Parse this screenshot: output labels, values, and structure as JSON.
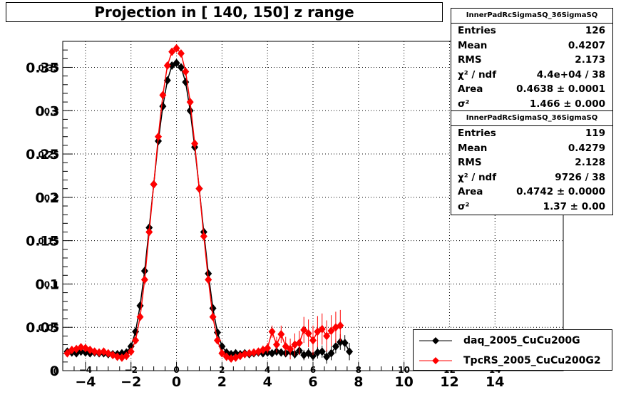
{
  "title": "Projection in [ 140, 150] z range",
  "stats_boxes": [
    {
      "name": "InnerPadRcSigmaSQ_36SigmaSQ",
      "rows": [
        {
          "key": "Entries",
          "value": "126"
        },
        {
          "key": "Mean",
          "value": "0.4207"
        },
        {
          "key": "RMS",
          "value": "2.173"
        },
        {
          "key": "χ² / ndf",
          "value": "4.4e+04 / 38"
        },
        {
          "key": "Area",
          "value": "0.4638 ± 0.0001"
        },
        {
          "key": "σ²",
          "value": "1.466 ± 0.000"
        }
      ]
    },
    {
      "name": "InnerPadRcSigmaSQ_36SigmaSQ",
      "rows": [
        {
          "key": "Entries",
          "value": "119"
        },
        {
          "key": "Mean",
          "value": "0.4279"
        },
        {
          "key": "RMS",
          "value": "2.128"
        },
        {
          "key": "χ² / ndf",
          "value": "9726 / 38"
        },
        {
          "key": "Area",
          "value": "0.4742 ± 0.0000"
        },
        {
          "key": "σ²",
          "value": "1.37 ± 0.00"
        }
      ]
    }
  ],
  "legend": [
    {
      "label": "daq_2005_CuCu200G",
      "color": "#000000"
    },
    {
      "label": "TpcRS_2005_CuCu200G2",
      "color": "#ff0000"
    }
  ],
  "chart_data": {
    "type": "scatter",
    "title": "Projection in [ 140, 150] z range",
    "xlabel": "",
    "ylabel": "",
    "xlim": [
      -5,
      17
    ],
    "ylim": [
      0,
      0.38
    ],
    "grid": true,
    "legend_position": "bottom-right",
    "x_ticks": [
      -4,
      -2,
      0,
      2,
      4,
      6,
      8,
      10,
      12,
      14
    ],
    "x_tick_labels": [
      "−4",
      "−2",
      "0",
      "2",
      "4",
      "6",
      "8",
      "10",
      "12",
      "14"
    ],
    "x_tick_labels_overlay": [
      "−4",
      "−2",
      "0",
      "2",
      "4",
      "6",
      "8",
      "10",
      "12",
      "14"
    ],
    "y_ticks": [
      0,
      0.05,
      0.1,
      0.15,
      0.2,
      0.25,
      0.3,
      0.35
    ],
    "y_tick_labels": [
      "0",
      "0.05",
      "0.1",
      "0.15",
      "0.2",
      "0.25",
      "0.3",
      "0.35"
    ],
    "y_tick_labels_overlay": [
      "0",
      "0.05",
      "0.1",
      "0.15",
      "0.2",
      "0.25",
      "0.3",
      "0.35"
    ],
    "series": [
      {
        "name": "daq_2005_CuCu200G",
        "color": "#000000",
        "marker": "diamond",
        "x": [
          -4.8,
          -4.6,
          -4.4,
          -4.2,
          -4.0,
          -3.8,
          -3.6,
          -3.4,
          -3.2,
          -3.0,
          -2.8,
          -2.6,
          -2.4,
          -2.2,
          -2.0,
          -1.8,
          -1.6,
          -1.4,
          -1.2,
          -1.0,
          -0.8,
          -0.6,
          -0.4,
          -0.2,
          0.0,
          0.2,
          0.4,
          0.6,
          0.8,
          1.0,
          1.2,
          1.4,
          1.6,
          1.8,
          2.0,
          2.2,
          2.4,
          2.6,
          2.8,
          3.0,
          3.2,
          3.4,
          3.6,
          3.8,
          4.0,
          4.2,
          4.4,
          4.6,
          4.8,
          5.0,
          5.2,
          5.4,
          5.6,
          5.8,
          6.0,
          6.2,
          6.4,
          6.6,
          6.8,
          7.0,
          7.2,
          7.4,
          7.6
        ],
        "y": [
          0.022,
          0.021,
          0.02,
          0.022,
          0.021,
          0.02,
          0.021,
          0.02,
          0.02,
          0.019,
          0.019,
          0.019,
          0.02,
          0.021,
          0.028,
          0.045,
          0.075,
          0.115,
          0.165,
          0.215,
          0.265,
          0.305,
          0.335,
          0.352,
          0.355,
          0.35,
          0.333,
          0.3,
          0.258,
          0.21,
          0.16,
          0.112,
          0.072,
          0.044,
          0.028,
          0.021,
          0.019,
          0.02,
          0.019,
          0.02,
          0.019,
          0.02,
          0.021,
          0.02,
          0.021,
          0.02,
          0.022,
          0.021,
          0.02,
          0.022,
          0.019,
          0.023,
          0.018,
          0.02,
          0.017,
          0.021,
          0.022,
          0.016,
          0.02,
          0.028,
          0.033,
          0.032,
          0.022
        ],
        "errors": [
          0.003,
          0.002,
          0.002,
          0.002,
          0.002,
          0.002,
          0.002,
          0.002,
          0.002,
          0.002,
          0.002,
          0.002,
          0.002,
          0.002,
          0.002,
          0.002,
          0.002,
          0.002,
          0.002,
          0.002,
          0.002,
          0.002,
          0.002,
          0.002,
          0.002,
          0.002,
          0.002,
          0.002,
          0.002,
          0.002,
          0.002,
          0.002,
          0.002,
          0.002,
          0.002,
          0.002,
          0.002,
          0.002,
          0.002,
          0.002,
          0.002,
          0.003,
          0.003,
          0.003,
          0.003,
          0.003,
          0.004,
          0.004,
          0.004,
          0.004,
          0.005,
          0.005,
          0.006,
          0.006,
          0.006,
          0.007,
          0.007,
          0.008,
          0.008,
          0.008,
          0.009,
          0.009,
          0.01
        ]
      },
      {
        "name": "TpcRS_2005_CuCu200G2",
        "color": "#ff0000",
        "marker": "diamond",
        "x": [
          -4.8,
          -4.6,
          -4.4,
          -4.2,
          -4.0,
          -3.8,
          -3.6,
          -3.4,
          -3.2,
          -3.0,
          -2.8,
          -2.6,
          -2.4,
          -2.2,
          -2.0,
          -1.8,
          -1.6,
          -1.4,
          -1.2,
          -1.0,
          -0.8,
          -0.6,
          -0.4,
          -0.2,
          0.0,
          0.2,
          0.4,
          0.6,
          0.8,
          1.0,
          1.2,
          1.4,
          1.6,
          1.8,
          2.0,
          2.2,
          2.4,
          2.6,
          2.8,
          3.0,
          3.2,
          3.4,
          3.6,
          3.8,
          4.0,
          4.2,
          4.4,
          4.6,
          4.8,
          5.0,
          5.2,
          5.4,
          5.6,
          5.8,
          6.0,
          6.2,
          6.4,
          6.6,
          6.8,
          7.0,
          7.2
        ],
        "y": [
          0.02,
          0.024,
          0.025,
          0.027,
          0.026,
          0.024,
          0.022,
          0.021,
          0.022,
          0.02,
          0.018,
          0.016,
          0.015,
          0.017,
          0.022,
          0.035,
          0.062,
          0.105,
          0.16,
          0.215,
          0.27,
          0.318,
          0.352,
          0.368,
          0.372,
          0.366,
          0.345,
          0.31,
          0.262,
          0.21,
          0.155,
          0.105,
          0.062,
          0.035,
          0.02,
          0.016,
          0.014,
          0.015,
          0.017,
          0.019,
          0.02,
          0.021,
          0.022,
          0.024,
          0.026,
          0.045,
          0.03,
          0.042,
          0.028,
          0.025,
          0.03,
          0.032,
          0.047,
          0.043,
          0.035,
          0.045,
          0.048,
          0.04,
          0.046,
          0.05,
          0.052
        ],
        "errors": [
          0.002,
          0.002,
          0.002,
          0.002,
          0.002,
          0.002,
          0.002,
          0.002,
          0.002,
          0.002,
          0.002,
          0.002,
          0.002,
          0.002,
          0.002,
          0.002,
          0.002,
          0.002,
          0.002,
          0.002,
          0.002,
          0.002,
          0.002,
          0.002,
          0.002,
          0.002,
          0.002,
          0.002,
          0.002,
          0.002,
          0.002,
          0.002,
          0.002,
          0.002,
          0.002,
          0.002,
          0.002,
          0.002,
          0.002,
          0.002,
          0.003,
          0.003,
          0.004,
          0.005,
          0.006,
          0.007,
          0.009,
          0.01,
          0.011,
          0.012,
          0.013,
          0.014,
          0.015,
          0.016,
          0.017,
          0.018,
          0.018,
          0.018,
          0.018,
          0.018,
          0.018
        ]
      }
    ]
  }
}
